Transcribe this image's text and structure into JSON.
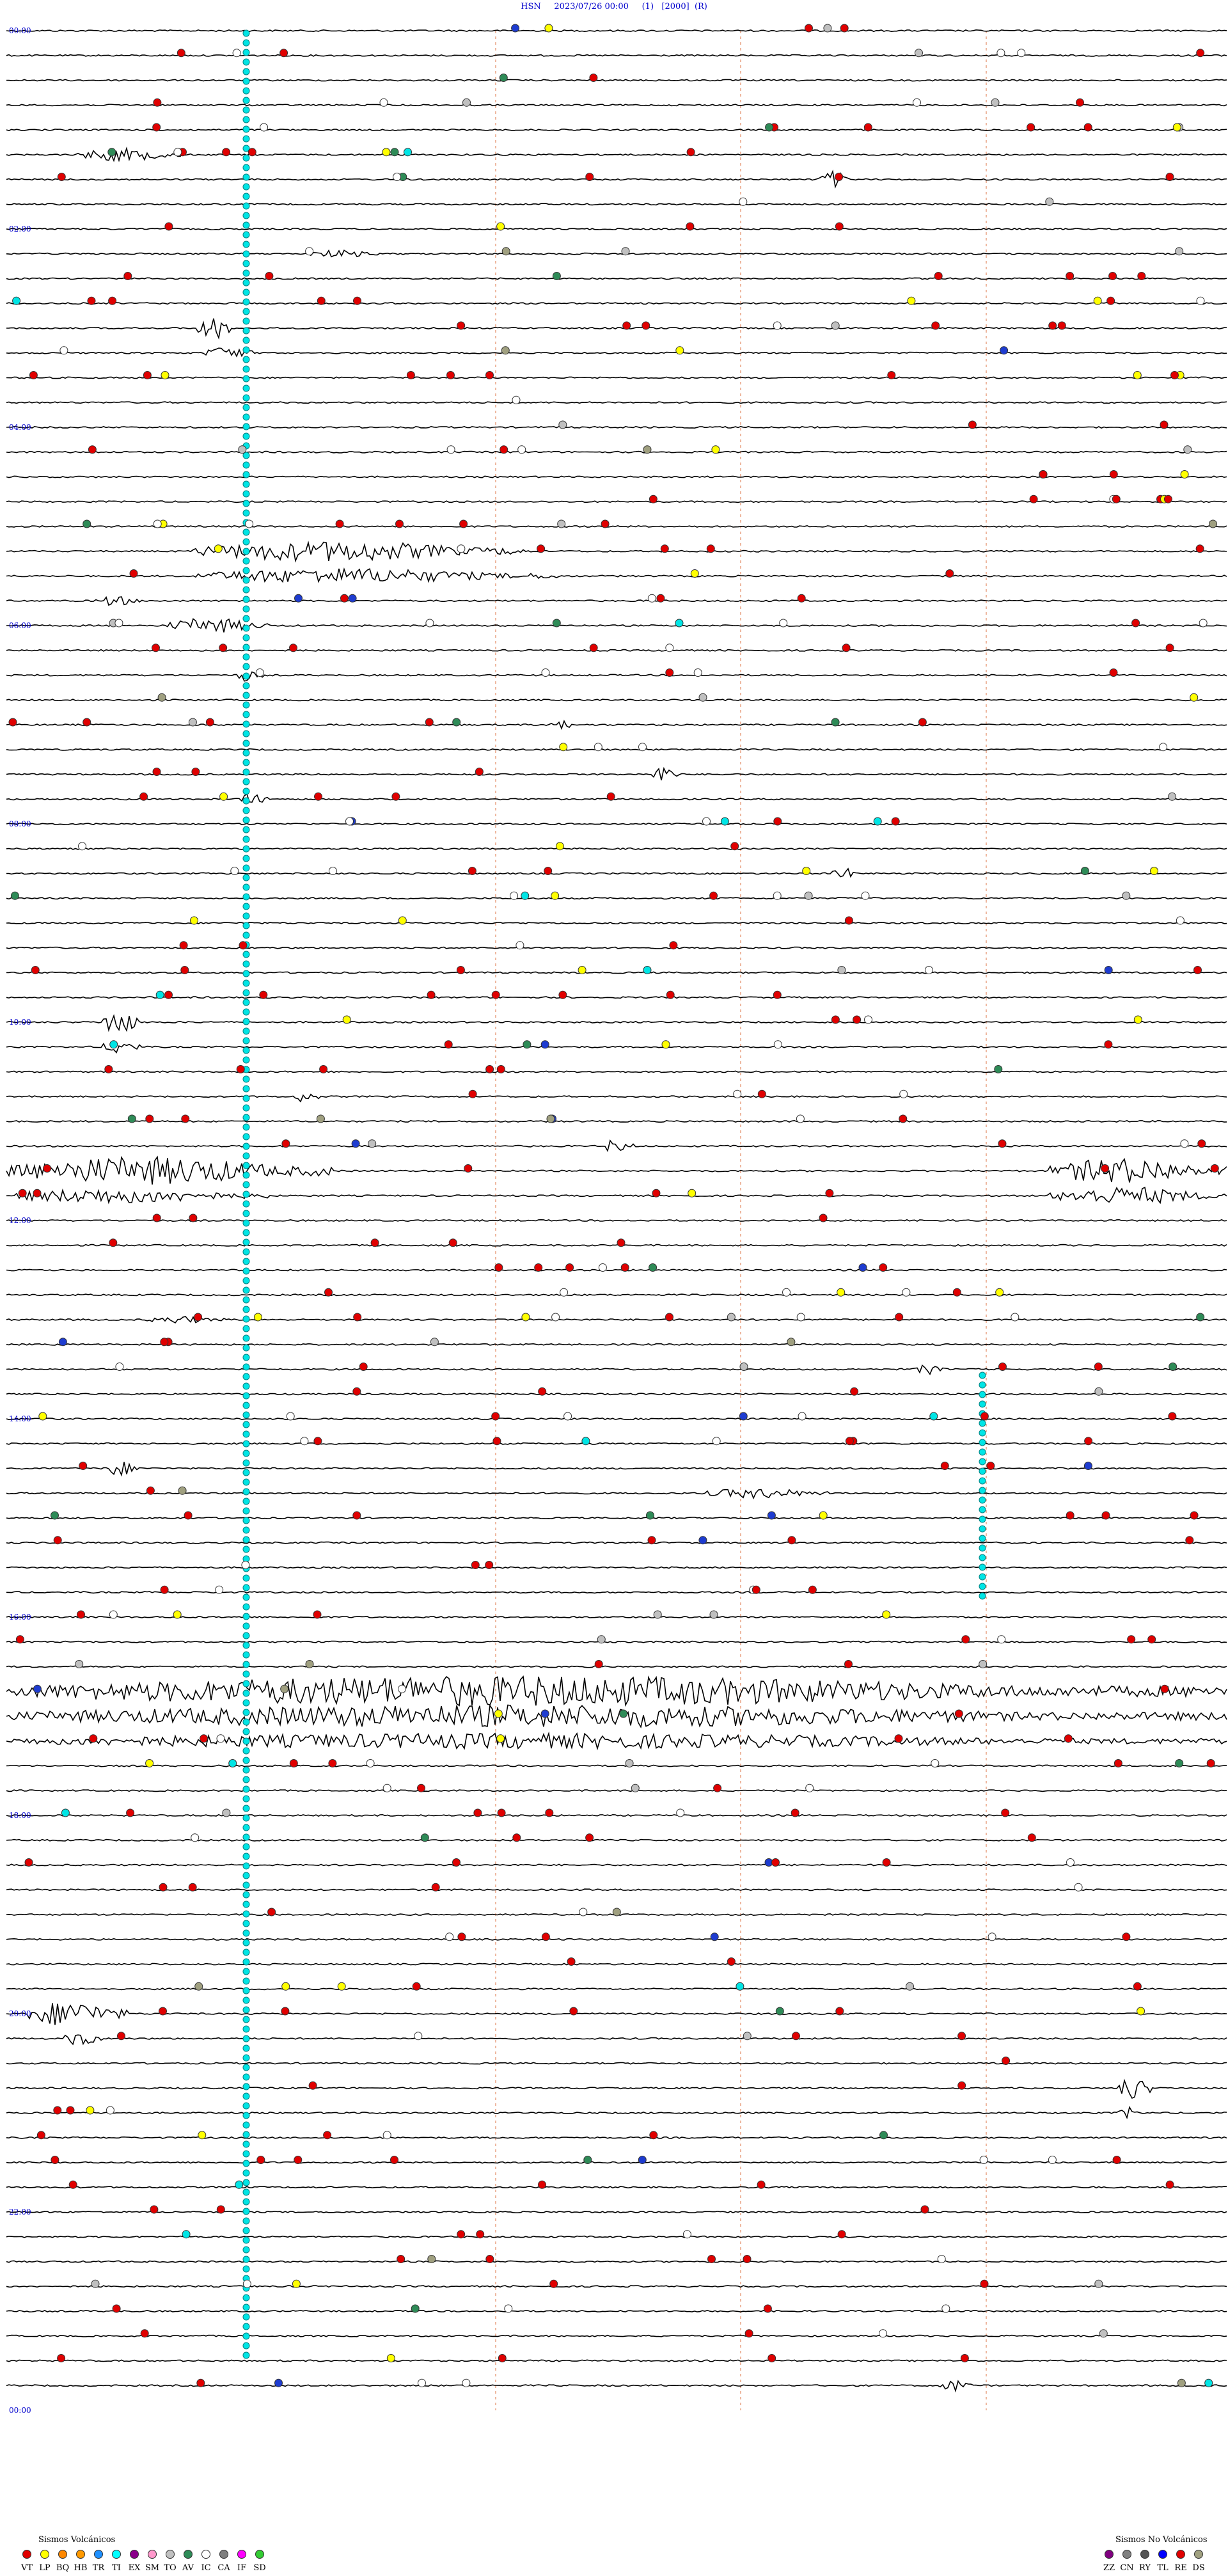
{
  "header": {
    "network": "HSN",
    "datetime": "2023/07/26 00:00",
    "channel": "(1)",
    "scale": "[2000]",
    "flag": "(R)"
  },
  "hour_labels": [
    "00:00",
    "02:00",
    "04:00",
    "06:00",
    "08:00",
    "10:00",
    "12:00",
    "14:00",
    "16:00",
    "18:00",
    "20:00",
    "22:00",
    "00:00"
  ],
  "legend": {
    "volcanic": {
      "title": "Sismos Volcánicos",
      "items": [
        {
          "code": "VT",
          "color": "#e00000"
        },
        {
          "code": "LP",
          "color": "#ffff00"
        },
        {
          "code": "BQ",
          "color": "#ff8800"
        },
        {
          "code": "HB",
          "color": "#ff9900"
        },
        {
          "code": "TR",
          "color": "#1e90ff"
        },
        {
          "code": "TI",
          "color": "#00ffff"
        },
        {
          "code": "EX",
          "color": "#8b008b"
        },
        {
          "code": "SM",
          "color": "#ff99cc"
        },
        {
          "code": "TO",
          "color": "#c0c0c0"
        },
        {
          "code": "AV",
          "color": "#2e8b57"
        },
        {
          "code": "IC",
          "color": "#ffffff"
        },
        {
          "code": "CA",
          "color": "#808080"
        },
        {
          "code": "IF",
          "color": "#ff00ff"
        },
        {
          "code": "SD",
          "color": "#33cc33"
        }
      ]
    },
    "non_volcanic": {
      "title": "Sismos No Volcánicos",
      "items": [
        {
          "code": "ZZ",
          "color": "#800080"
        },
        {
          "code": "CN",
          "color": "#808080"
        },
        {
          "code": "RY",
          "color": "#555555"
        },
        {
          "code": "TL",
          "color": "#0000ff"
        },
        {
          "code": "RE",
          "color": "#e00000"
        },
        {
          "code": "DS",
          "color": "#a0a080"
        }
      ]
    }
  }
}
